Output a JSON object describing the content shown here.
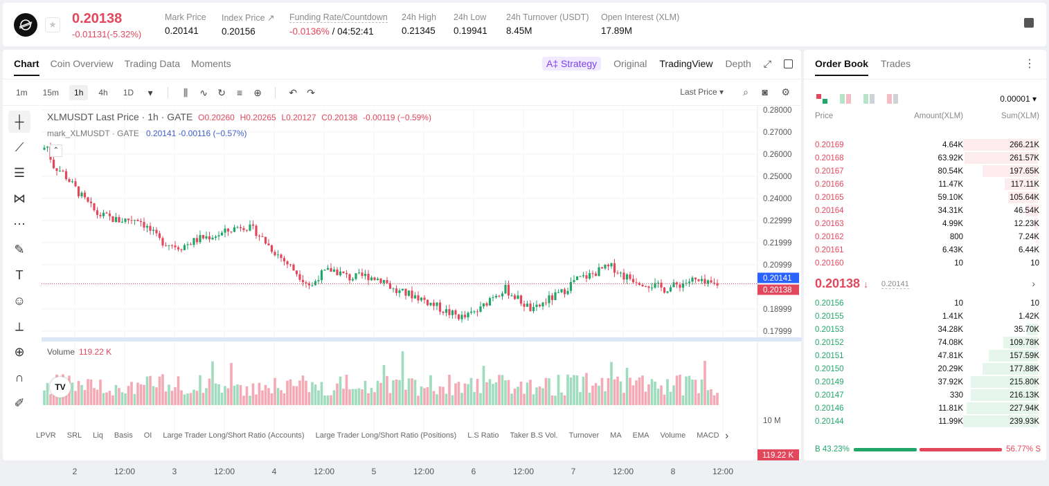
{
  "ticker": {
    "last_price": "0.20138",
    "change": "-0.01131(-5.32%)",
    "stats": [
      {
        "label": "Mark Price",
        "value": "0.20141"
      },
      {
        "label": "Index Price ↗",
        "value": "0.20156"
      },
      {
        "label": "Funding Rate/Countdown",
        "value_red": "-0.0136%",
        "value": "/ 04:52:41"
      },
      {
        "label": "24h High",
        "value": "0.21345"
      },
      {
        "label": "24h Low",
        "value": "0.19941"
      },
      {
        "label": "24h Turnover (USDT)",
        "value": "8.45M"
      },
      {
        "label": "Open Interest (XLM)",
        "value": "17.89M"
      }
    ]
  },
  "chart_tabs": [
    "Chart",
    "Coin Overview",
    "Trading Data",
    "Moments"
  ],
  "chart_views": {
    "strategy": "A‡ Strategy",
    "original": "Original",
    "tradingview": "TradingView",
    "depth": "Depth"
  },
  "timeframes": [
    "1m",
    "15m",
    "1h",
    "4h",
    "1D"
  ],
  "active_timeframe": "1h",
  "last_price_select": "Last Price",
  "legend": {
    "title": "XLMUSDT Last Price · 1h · GATE",
    "o": "O0.20260",
    "h": "H0.20265",
    "l": "L0.20127",
    "c": "C0.20138",
    "chg": "-0.00119 (−0.59%)",
    "mark_label": "mark_XLMUSDT · GATE",
    "mark_vals": "0.20141  -0.00116 (−0.57%)"
  },
  "volume_legend": {
    "label": "Volume",
    "value": "119.22 K"
  },
  "price_axis": [
    "0.28000",
    "0.27000",
    "0.26000",
    "0.25000",
    "0.24000",
    "0.22999",
    "0.21999",
    "0.20999",
    "0.18999",
    "0.17999"
  ],
  "price_badges": {
    "mark": "0.20141",
    "last": "0.20138"
  },
  "volume_axis": {
    "tick": "10 M",
    "badge": "119.22 K"
  },
  "time_axis": [
    "2",
    "12:00",
    "3",
    "12:00",
    "4",
    "12:00",
    "5",
    "12:00",
    "6",
    "12:00",
    "7",
    "12:00",
    "8",
    "12:00"
  ],
  "indicators": [
    "LPVR",
    "SRL",
    "Liq",
    "Basis",
    "OI",
    "Large Trader Long/Short Ratio (Accounts)",
    "Large Trader Long/Short Ratio (Positions)",
    "L.S Ratio",
    "Taker B.S Vol.",
    "Turnover",
    "MA",
    "EMA",
    "Volume",
    "MACD"
  ],
  "order_book": {
    "tabs": [
      "Order Book",
      "Trades"
    ],
    "precision": "0.00001",
    "headers": {
      "price": "Price",
      "amount": "Amount(XLM)",
      "sum": "Sum(XLM)"
    },
    "asks": [
      {
        "price": "0.20169",
        "amount": "4.64K",
        "sum": "266.21K",
        "depth": 1.0
      },
      {
        "price": "0.20168",
        "amount": "63.92K",
        "sum": "261.57K",
        "depth": 0.98
      },
      {
        "price": "0.20167",
        "amount": "80.54K",
        "sum": "197.65K",
        "depth": 0.74
      },
      {
        "price": "0.20166",
        "amount": "11.47K",
        "sum": "117.11K",
        "depth": 0.44
      },
      {
        "price": "0.20165",
        "amount": "59.10K",
        "sum": "105.64K",
        "depth": 0.4
      },
      {
        "price": "0.20164",
        "amount": "34.31K",
        "sum": "46.54K",
        "depth": 0.17
      },
      {
        "price": "0.20163",
        "amount": "4.99K",
        "sum": "12.23K",
        "depth": 0.05
      },
      {
        "price": "0.20162",
        "amount": "800",
        "sum": "7.24K",
        "depth": 0.03
      },
      {
        "price": "0.20161",
        "amount": "6.43K",
        "sum": "6.44K",
        "depth": 0.02
      },
      {
        "price": "0.20160",
        "amount": "10",
        "sum": "10",
        "depth": 0.0
      }
    ],
    "mid": {
      "price": "0.20138",
      "arrow": "↓",
      "mark": "0.20141"
    },
    "bids": [
      {
        "price": "0.20156",
        "amount": "10",
        "sum": "10",
        "depth": 0.0
      },
      {
        "price": "0.20155",
        "amount": "1.41K",
        "sum": "1.42K",
        "depth": 0.01
      },
      {
        "price": "0.20153",
        "amount": "34.28K",
        "sum": "35.70K",
        "depth": 0.15
      },
      {
        "price": "0.20152",
        "amount": "74.08K",
        "sum": "109.78K",
        "depth": 0.46
      },
      {
        "price": "0.20151",
        "amount": "47.81K",
        "sum": "157.59K",
        "depth": 0.66
      },
      {
        "price": "0.20150",
        "amount": "20.29K",
        "sum": "177.88K",
        "depth": 0.74
      },
      {
        "price": "0.20149",
        "amount": "37.92K",
        "sum": "215.80K",
        "depth": 0.9
      },
      {
        "price": "0.20147",
        "amount": "330",
        "sum": "216.13K",
        "depth": 0.9
      },
      {
        "price": "0.20146",
        "amount": "11.81K",
        "sum": "227.94K",
        "depth": 0.95
      },
      {
        "price": "0.20144",
        "amount": "11.99K",
        "sum": "239.93K",
        "depth": 1.0
      }
    ],
    "buy_ratio": "B 43.23%",
    "sell_ratio": "56.77% S",
    "buy_fraction": 0.4323
  },
  "colors": {
    "up": "#21a66a",
    "down": "#e2475c",
    "accent_blue": "#2962ff"
  }
}
